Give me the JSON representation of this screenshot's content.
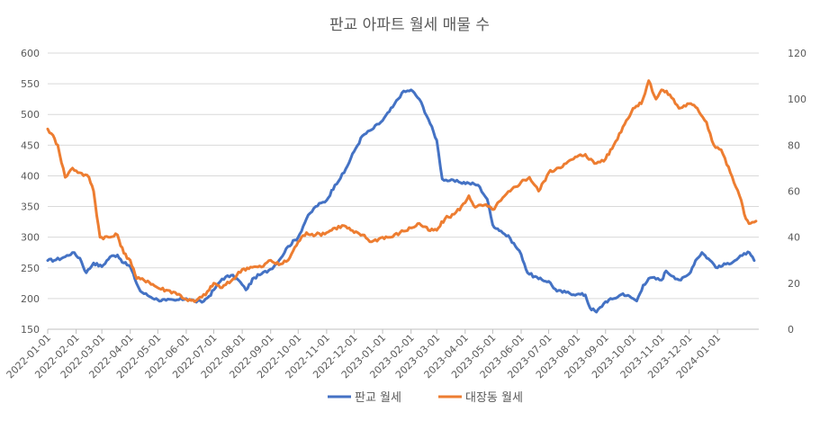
{
  "chart_data": {
    "type": "line",
    "title": "판교 아파트 월세 매물 수",
    "xlabel": "",
    "ylabel": "",
    "y_left": {
      "min": 150,
      "max": 600,
      "step": 50
    },
    "y_right": {
      "min": 0,
      "max": 120,
      "step": 20
    },
    "x_range": [
      "2022-01-01",
      "2024-02-15"
    ],
    "x_ticks": [
      "2022-01-01",
      "2022-02-01",
      "2022-03-01",
      "2022-04-01",
      "2022-05-01",
      "2022-06-01",
      "2022-07-01",
      "2022-08-01",
      "2022-09-01",
      "2022-10-01",
      "2022-11-01",
      "2022-12-01",
      "2023-01-01",
      "2023-02-01",
      "2023-03-01",
      "2023-04-01",
      "2023-05-01",
      "2023-06-01",
      "2023-07-01",
      "2023-08-01",
      "2023-09-01",
      "2023-10-01",
      "2023-11-01",
      "2023-12-01",
      "2024-01-01"
    ],
    "grid": true,
    "legend_position": "bottom",
    "series": [
      {
        "name": "판교 월세",
        "axis": "left",
        "color": "#4472C4",
        "points": [
          [
            "2022-01-01",
            262
          ],
          [
            "2022-01-10",
            263
          ],
          [
            "2022-01-20",
            268
          ],
          [
            "2022-01-28",
            275
          ],
          [
            "2022-02-05",
            266
          ],
          [
            "2022-02-12",
            242
          ],
          [
            "2022-02-20",
            258
          ],
          [
            "2022-03-01",
            252
          ],
          [
            "2022-03-10",
            268
          ],
          [
            "2022-03-18",
            271
          ],
          [
            "2022-03-25",
            258
          ],
          [
            "2022-04-01",
            252
          ],
          [
            "2022-04-06",
            232
          ],
          [
            "2022-04-12",
            212
          ],
          [
            "2022-04-20",
            205
          ],
          [
            "2022-05-01",
            198
          ],
          [
            "2022-05-10",
            197
          ],
          [
            "2022-05-20",
            197
          ],
          [
            "2022-06-01",
            200
          ],
          [
            "2022-06-10",
            196
          ],
          [
            "2022-06-18",
            194
          ],
          [
            "2022-06-26",
            204
          ],
          [
            "2022-07-01",
            214
          ],
          [
            "2022-07-10",
            232
          ],
          [
            "2022-07-20",
            238
          ],
          [
            "2022-07-28",
            230
          ],
          [
            "2022-08-05",
            214
          ],
          [
            "2022-08-14",
            234
          ],
          [
            "2022-08-22",
            240
          ],
          [
            "2022-09-01",
            248
          ],
          [
            "2022-09-10",
            262
          ],
          [
            "2022-09-20",
            285
          ],
          [
            "2022-10-01",
            300
          ],
          [
            "2022-10-10",
            330
          ],
          [
            "2022-10-20",
            350
          ],
          [
            "2022-11-01",
            360
          ],
          [
            "2022-11-10",
            385
          ],
          [
            "2022-11-20",
            405
          ],
          [
            "2022-12-01",
            440
          ],
          [
            "2022-12-10",
            465
          ],
          [
            "2022-12-20",
            475
          ],
          [
            "2023-01-01",
            490
          ],
          [
            "2023-01-12",
            512
          ],
          [
            "2023-01-22",
            535
          ],
          [
            "2023-02-01",
            540
          ],
          [
            "2023-02-10",
            525
          ],
          [
            "2023-02-20",
            492
          ],
          [
            "2023-03-01",
            458
          ],
          [
            "2023-03-07",
            395
          ],
          [
            "2023-03-15",
            392
          ],
          [
            "2023-03-25",
            390
          ],
          [
            "2023-04-05",
            388
          ],
          [
            "2023-04-15",
            385
          ],
          [
            "2023-04-25",
            362
          ],
          [
            "2023-05-01",
            320
          ],
          [
            "2023-05-10",
            310
          ],
          [
            "2023-05-20",
            298
          ],
          [
            "2023-06-01",
            272
          ],
          [
            "2023-06-08",
            242
          ],
          [
            "2023-06-20",
            232
          ],
          [
            "2023-07-01",
            228
          ],
          [
            "2023-07-10",
            212
          ],
          [
            "2023-07-20",
            210
          ],
          [
            "2023-08-01",
            207
          ],
          [
            "2023-08-10",
            206
          ],
          [
            "2023-08-15",
            185
          ],
          [
            "2023-08-22",
            178
          ],
          [
            "2023-09-01",
            195
          ],
          [
            "2023-09-10",
            200
          ],
          [
            "2023-09-20",
            208
          ],
          [
            "2023-10-01",
            200
          ],
          [
            "2023-10-05",
            196
          ],
          [
            "2023-10-12",
            222
          ],
          [
            "2023-10-20",
            234
          ],
          [
            "2023-11-01",
            230
          ],
          [
            "2023-11-06",
            245
          ],
          [
            "2023-11-14",
            236
          ],
          [
            "2023-11-22",
            230
          ],
          [
            "2023-12-01",
            240
          ],
          [
            "2023-12-08",
            262
          ],
          [
            "2023-12-15",
            275
          ],
          [
            "2023-12-22",
            265
          ],
          [
            "2024-01-01",
            250
          ],
          [
            "2024-01-10",
            256
          ],
          [
            "2024-01-20",
            262
          ],
          [
            "2024-01-28",
            270
          ],
          [
            "2024-02-03",
            276
          ],
          [
            "2024-02-10",
            262
          ]
        ]
      },
      {
        "name": "대장동 월세",
        "axis": "right",
        "color": "#ED7D31",
        "points": [
          [
            "2022-01-01",
            87
          ],
          [
            "2022-01-05",
            85
          ],
          [
            "2022-01-12",
            80
          ],
          [
            "2022-01-20",
            66
          ],
          [
            "2022-01-28",
            70
          ],
          [
            "2022-02-05",
            68
          ],
          [
            "2022-02-15",
            66
          ],
          [
            "2022-02-20",
            60
          ],
          [
            "2022-02-27",
            40
          ],
          [
            "2022-03-10",
            40
          ],
          [
            "2022-03-18",
            41
          ],
          [
            "2022-03-25",
            33
          ],
          [
            "2022-04-01",
            30
          ],
          [
            "2022-04-08",
            22
          ],
          [
            "2022-04-20",
            21
          ],
          [
            "2022-05-01",
            18
          ],
          [
            "2022-05-10",
            17
          ],
          [
            "2022-05-20",
            16
          ],
          [
            "2022-06-01",
            13
          ],
          [
            "2022-06-10",
            12
          ],
          [
            "2022-06-18",
            14
          ],
          [
            "2022-06-26",
            17
          ],
          [
            "2022-07-01",
            20
          ],
          [
            "2022-07-10",
            18
          ],
          [
            "2022-07-20",
            21
          ],
          [
            "2022-08-01",
            26
          ],
          [
            "2022-08-10",
            27
          ],
          [
            "2022-08-22",
            27
          ],
          [
            "2022-09-01",
            30
          ],
          [
            "2022-09-10",
            28
          ],
          [
            "2022-09-20",
            30
          ],
          [
            "2022-10-01",
            38
          ],
          [
            "2022-10-10",
            42
          ],
          [
            "2022-10-20",
            41
          ],
          [
            "2022-11-01",
            42
          ],
          [
            "2022-11-10",
            44
          ],
          [
            "2022-11-20",
            45
          ],
          [
            "2022-12-01",
            42
          ],
          [
            "2022-12-10",
            41
          ],
          [
            "2022-12-20",
            38
          ],
          [
            "2023-01-01",
            40
          ],
          [
            "2023-01-10",
            40
          ],
          [
            "2023-01-20",
            42
          ],
          [
            "2023-02-01",
            44
          ],
          [
            "2023-02-10",
            46
          ],
          [
            "2023-02-20",
            43
          ],
          [
            "2023-03-01",
            43
          ],
          [
            "2023-03-10",
            48
          ],
          [
            "2023-03-20",
            50
          ],
          [
            "2023-04-01",
            55
          ],
          [
            "2023-04-05",
            58
          ],
          [
            "2023-04-12",
            53
          ],
          [
            "2023-04-22",
            54
          ],
          [
            "2023-05-01",
            52
          ],
          [
            "2023-05-10",
            56
          ],
          [
            "2023-05-20",
            60
          ],
          [
            "2023-06-01",
            64
          ],
          [
            "2023-06-10",
            66
          ],
          [
            "2023-06-20",
            60
          ],
          [
            "2023-07-01",
            68
          ],
          [
            "2023-07-10",
            70
          ],
          [
            "2023-07-20",
            72
          ],
          [
            "2023-08-01",
            75
          ],
          [
            "2023-08-10",
            76
          ],
          [
            "2023-08-20",
            72
          ],
          [
            "2023-09-01",
            74
          ],
          [
            "2023-09-10",
            80
          ],
          [
            "2023-09-20",
            88
          ],
          [
            "2023-10-01",
            96
          ],
          [
            "2023-10-10",
            98
          ],
          [
            "2023-10-18",
            108
          ],
          [
            "2023-10-26",
            100
          ],
          [
            "2023-11-01",
            104
          ],
          [
            "2023-11-10",
            102
          ],
          [
            "2023-11-20",
            96
          ],
          [
            "2023-12-01",
            98
          ],
          [
            "2023-12-10",
            96
          ],
          [
            "2023-12-20",
            90
          ],
          [
            "2023-12-28",
            80
          ],
          [
            "2024-01-05",
            78
          ],
          [
            "2024-01-15",
            68
          ],
          [
            "2024-01-25",
            58
          ],
          [
            "2024-02-01",
            48
          ],
          [
            "2024-02-06",
            46
          ],
          [
            "2024-02-12",
            47
          ]
        ]
      }
    ]
  }
}
